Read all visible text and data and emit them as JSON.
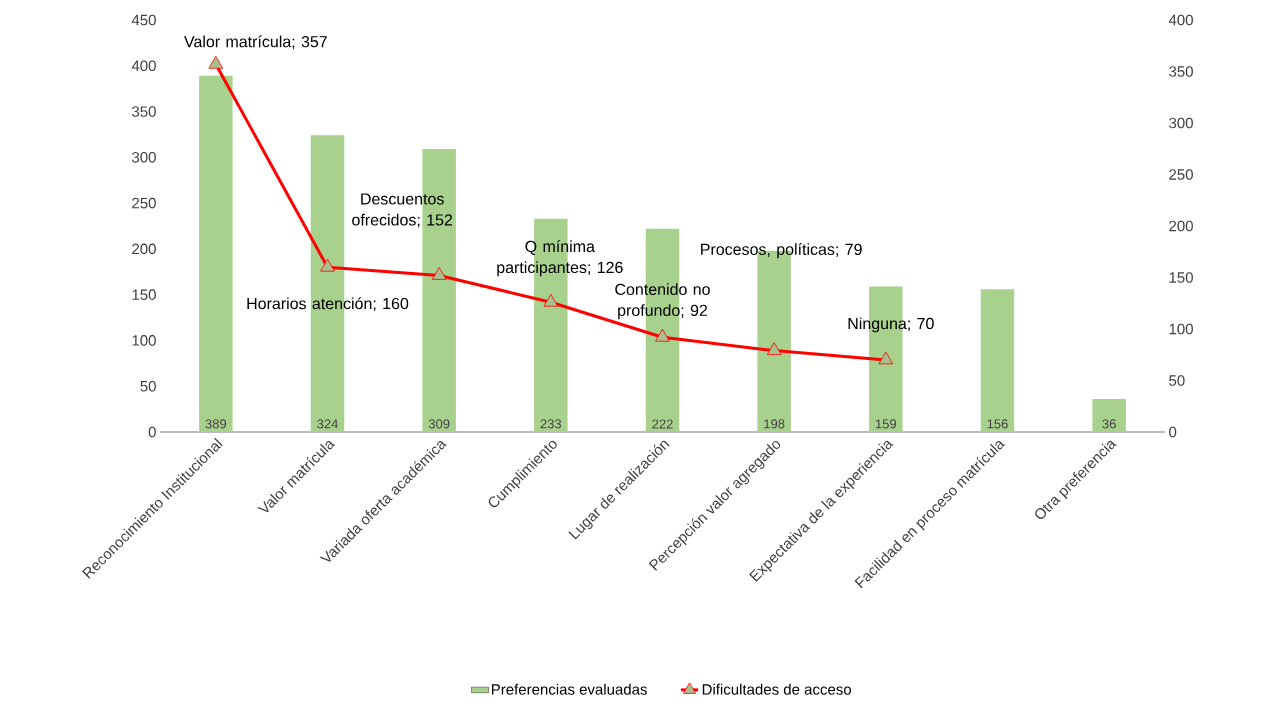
{
  "chart_data": {
    "type": "bar",
    "categories": [
      "Reconocimiento Institucional",
      "Valor matrícula",
      "Variada oferta académica",
      "Cumplimiento",
      "Lugar de realización",
      "Percepción valor agregado",
      "Expectativa de la experiencia",
      "Facilidad en proceso matrícula",
      "Otra preferencia"
    ],
    "series": [
      {
        "name": "Preferencias evaluadas",
        "color": "#a9d18e",
        "values": [
          389,
          324,
          309,
          233,
          222,
          198,
          159,
          156,
          36
        ],
        "value_labels": [
          "389",
          "324",
          "309",
          "233",
          "222",
          "198",
          "159",
          "156",
          "36"
        ]
      },
      {
        "name": "Dificultades de acceso",
        "type": "line",
        "axis": "y2",
        "color": "#ff0000",
        "values": [
          357,
          160,
          152,
          126,
          92,
          79,
          70,
          null,
          null
        ]
      }
    ],
    "ylim": [
      0,
      450
    ],
    "yticks": [
      0,
      50,
      100,
      150,
      200,
      250,
      300,
      350,
      400,
      450
    ],
    "y2lim": [
      0,
      400
    ],
    "y2ticks": [
      0,
      50,
      100,
      150,
      200,
      250,
      300,
      350,
      400
    ],
    "marker": "triangle",
    "line_style": "solid",
    "legend": "bottom",
    "annotations": [
      "Valor matrícula; 357",
      "Horarios atención; 160",
      "Descuentos ofrecidos; 152",
      "Q mínima participantes; 126",
      "Contenido no profundo; 92",
      "Procesos, políticas; 79",
      "Ninguna; 70"
    ]
  }
}
